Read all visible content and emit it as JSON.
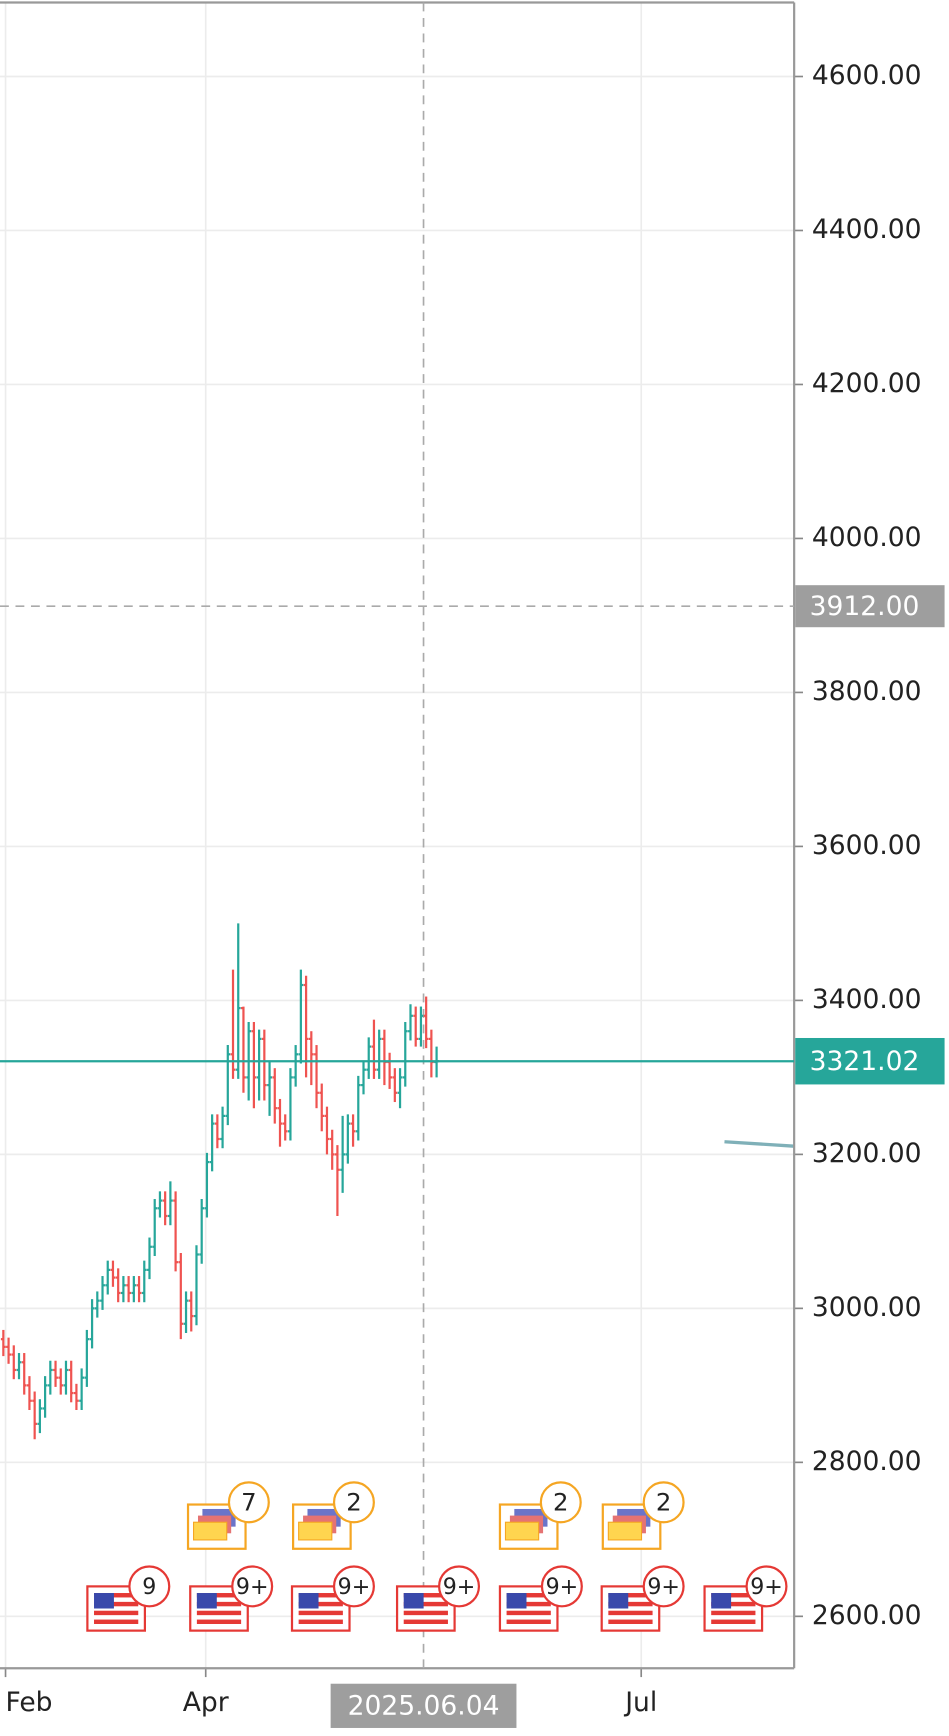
{
  "chart_data": {
    "type": "ohlc",
    "open": [
      2960,
      2950,
      2940,
      2920,
      2930,
      2900,
      2880,
      2850,
      2870,
      2900,
      2920,
      2910,
      2900,
      2920,
      2890,
      2880,
      2910,
      2960,
      3000,
      3010,
      3030,
      3050,
      3040,
      3020,
      3030,
      3020,
      3030,
      3020,
      3050,
      3080,
      3130,
      3140,
      3120,
      3140,
      3060,
      2980,
      3010,
      2990,
      3070,
      3130,
      3190,
      3240,
      3220,
      3250,
      3330,
      3310,
      3390,
      3300,
      3360,
      3300,
      3350,
      3290,
      3300,
      3260,
      3240,
      3230,
      3300,
      3330,
      3420,
      3350,
      3330,
      3280,
      3250,
      3220,
      3200,
      3180,
      3200,
      3240,
      3230,
      3290,
      3310,
      3340,
      3310,
      3350,
      3320,
      3300,
      3280,
      3300,
      3360,
      3380,
      3350,
      3380,
      3350,
      3320
    ],
    "high": [
      2972,
      2962,
      2952,
      2942,
      2942,
      2912,
      2892,
      2882,
      2912,
      2932,
      2932,
      2922,
      2932,
      2932,
      2902,
      2922,
      2972,
      3012,
      3022,
      3042,
      3062,
      3062,
      3052,
      3042,
      3042,
      3042,
      3042,
      3062,
      3092,
      3142,
      3152,
      3152,
      3165,
      3152,
      3072,
      3022,
      3022,
      3082,
      3142,
      3202,
      3252,
      3252,
      3262,
      3342,
      3440,
      3500,
      3392,
      3372,
      3372,
      3362,
      3362,
      3320,
      3312,
      3272,
      3252,
      3312,
      3342,
      3440,
      3432,
      3360,
      3342,
      3292,
      3262,
      3232,
      3212,
      3250,
      3252,
      3252,
      3302,
      3322,
      3352,
      3375,
      3362,
      3362,
      3332,
      3312,
      3312,
      3372,
      3395,
      3392,
      3392,
      3405,
      3362,
      3340
    ],
    "low": [
      2938,
      2928,
      2908,
      2908,
      2888,
      2868,
      2830,
      2838,
      2858,
      2888,
      2898,
      2888,
      2888,
      2878,
      2868,
      2868,
      2898,
      2948,
      2988,
      2998,
      3018,
      3028,
      3008,
      3008,
      3008,
      3008,
      3008,
      3008,
      3038,
      3068,
      3118,
      3108,
      3108,
      3048,
      2960,
      2968,
      2970,
      2978,
      3058,
      3118,
      3178,
      3208,
      3208,
      3238,
      3298,
      3298,
      3280,
      3270,
      3260,
      3270,
      3270,
      3250,
      3240,
      3210,
      3218,
      3218,
      3288,
      3318,
      3300,
      3290,
      3260,
      3230,
      3200,
      3180,
      3120,
      3150,
      3188,
      3210,
      3218,
      3278,
      3298,
      3298,
      3298,
      3290,
      3285,
      3268,
      3260,
      3288,
      3348,
      3340,
      3340,
      3338,
      3300,
      3300
    ],
    "close": [
      2950,
      2940,
      2920,
      2930,
      2900,
      2880,
      2850,
      2870,
      2900,
      2920,
      2910,
      2900,
      2920,
      2890,
      2880,
      2910,
      2960,
      3000,
      3010,
      3030,
      3050,
      3040,
      3020,
      3030,
      3020,
      3030,
      3020,
      3050,
      3080,
      3130,
      3140,
      3120,
      3140,
      3060,
      2980,
      3010,
      2990,
      3070,
      3130,
      3190,
      3240,
      3220,
      3250,
      3330,
      3310,
      3390,
      3300,
      3360,
      3300,
      3350,
      3290,
      3300,
      3260,
      3240,
      3230,
      3300,
      3330,
      3420,
      3350,
      3330,
      3280,
      3250,
      3220,
      3200,
      3180,
      3200,
      3240,
      3230,
      3290,
      3310,
      3340,
      3310,
      3350,
      3320,
      3300,
      3280,
      3300,
      3360,
      3380,
      3350,
      3380,
      3350,
      3320,
      3321.02
    ],
    "up_color": "#26a69a",
    "down_color": "#ef5350",
    "xlim": [
      -0.64,
      151.5
    ],
    "xticks": [
      {
        "value": 0.42,
        "label": "Feb"
      },
      {
        "value": 38.77,
        "label": "Apr"
      },
      {
        "value": 122.2,
        "label": "Jul"
      }
    ],
    "ylim": [
      2532.6,
      4696.1
    ],
    "yticks": [
      {
        "value": 2600,
        "label": "2600.00"
      },
      {
        "value": 2800,
        "label": "2800.00"
      },
      {
        "value": 3000,
        "label": "3000.00"
      },
      {
        "value": 3200,
        "label": "3200.00"
      },
      {
        "value": 3400,
        "label": "3400.00"
      },
      {
        "value": 3600,
        "label": "3600.00"
      },
      {
        "value": 3800,
        "label": "3800.00"
      },
      {
        "value": 4000,
        "label": "4000.00"
      },
      {
        "value": 4200,
        "label": "4200.00"
      },
      {
        "value": 4400,
        "label": "4400.00"
      },
      {
        "value": 4600,
        "label": "4600.00"
      }
    ],
    "grid": true,
    "last_price": {
      "value": 3321.02,
      "label": "3321.02",
      "color": "#26a69a"
    },
    "crosshair": {
      "x": 80.5,
      "x_label": "2025.06.04",
      "y": 3912,
      "y_label": "3912.00"
    },
    "events_top": [
      "7",
      "2",
      "2",
      "2"
    ],
    "events_bottom": [
      "9",
      "9+",
      "9+",
      "9+",
      "9+",
      "9+",
      "9+"
    ]
  }
}
